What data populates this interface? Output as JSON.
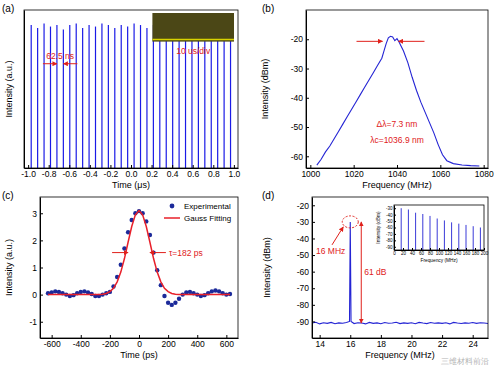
{
  "chart_data": [
    {
      "type": "stem",
      "title": "(a)",
      "x_label": "Time (μs)",
      "y_label": "Intensity (a.u.)",
      "x": [
        -0.97,
        -0.9075,
        -0.845,
        -0.7825,
        -0.72,
        -0.6575,
        -0.595,
        -0.5325,
        -0.47,
        -0.4075,
        -0.345,
        -0.2825,
        -0.22,
        -0.1575,
        -0.095,
        -0.0325,
        0.03,
        0.0925,
        0.155,
        0.2175,
        0.28,
        0.3425,
        0.405,
        0.4675,
        0.53,
        0.5925,
        0.655,
        0.7175,
        0.78,
        0.8425,
        0.905,
        0.9675
      ],
      "series": [
        {
          "color": "#1a1ae6",
          "values": [
            0.9,
            0.88,
            0.91,
            0.89,
            0.9,
            0.87,
            0.9,
            0.91,
            0.88,
            0.9,
            0.89,
            0.91,
            0.9,
            0.88,
            0.9,
            0.89,
            0.91,
            0.9,
            0.88,
            0.9,
            0.91,
            0.89,
            0.9,
            0.88,
            0.9,
            0.91,
            0.89,
            0.9,
            0.88,
            0.9,
            0.91,
            0.89
          ]
        }
      ],
      "xlim": [
        -1.04,
        1.04
      ],
      "xticks": [
        {
          "value": -1,
          "label": "-1.0"
        },
        {
          "value": -0.8,
          "label": "-0.8"
        },
        {
          "value": -0.6,
          "label": "-0.6"
        },
        {
          "value": -0.4,
          "label": "-0.4"
        },
        {
          "value": -0.2,
          "label": "-0.2"
        },
        {
          "value": 0,
          "label": "0.0"
        },
        {
          "value": 0.2,
          "label": "0.2"
        },
        {
          "value": 0.4,
          "label": "0.4"
        },
        {
          "value": 0.6,
          "label": "0.6"
        },
        {
          "value": 0.8,
          "label": "0.8"
        },
        {
          "value": 1,
          "label": "1.0"
        }
      ],
      "ylim": [
        -0.05,
        1
      ],
      "tick_labels": "x",
      "annotations": [
        "62.5 ns",
        "10 us/div"
      ]
    },
    {
      "type": "line",
      "title": "(b)",
      "x_label": "Frequency (MHz)",
      "y_label": "Intensity (dBm)",
      "x": [
        1003,
        1005,
        1007,
        1009,
        1011,
        1013,
        1015,
        1017,
        1019,
        1021,
        1023,
        1025,
        1027,
        1029,
        1031,
        1033,
        1034,
        1035,
        1036,
        1037,
        1038,
        1039,
        1040,
        1041,
        1043,
        1045,
        1047,
        1049,
        1051,
        1053,
        1055,
        1057,
        1059,
        1061,
        1063,
        1066,
        1070,
        1074,
        1078
      ],
      "series": [
        {
          "color": "#2424d4",
          "values": [
            -63,
            -61,
            -58.5,
            -56.5,
            -54,
            -51.5,
            -49,
            -46.5,
            -44,
            -41.5,
            -39,
            -36.5,
            -34,
            -31.5,
            -29,
            -26.5,
            -24,
            -21.5,
            -19.5,
            -19,
            -19.2,
            -20.5,
            -19.8,
            -21,
            -24,
            -28,
            -33,
            -37.5,
            -41.5,
            -45,
            -48.5,
            -52,
            -56,
            -59.5,
            -61.5,
            -62.5,
            -63,
            -63.2,
            -63.3
          ]
        }
      ],
      "xlim": [
        998,
        1082
      ],
      "xticks": [
        1000,
        1020,
        1040,
        1060,
        1080
      ],
      "ylim": [
        -64,
        -10
      ],
      "yticks": [
        -60,
        -50,
        -40,
        -30,
        -20
      ],
      "annotations": [
        "Δλ=7.3 nm",
        "λc=1036.9 nm"
      ]
    },
    {
      "type": "line",
      "title": "(c)",
      "x_label": "Time (ps)",
      "y_label": "Intensity (a.u.)",
      "x": [
        -625,
        -600,
        -575,
        -550,
        -525,
        -500,
        -475,
        -450,
        -425,
        -400,
        -375,
        -350,
        -325,
        -300,
        -275,
        -250,
        -225,
        -200,
        -175,
        -150,
        -125,
        -100,
        -75,
        -50,
        -25,
        0,
        25,
        50,
        75,
        100,
        125,
        150,
        175,
        200,
        225,
        250,
        275,
        300,
        325,
        350,
        375,
        400,
        425,
        450,
        475,
        500,
        525,
        550,
        575,
        600,
        625
      ],
      "series": [
        {
          "name": "Experimental",
          "type": "scatter",
          "marker": "circle",
          "color": "#1c2a9a",
          "values": [
            0.05,
            0.08,
            0.12,
            0.1,
            0.05,
            0.0,
            -0.05,
            -0.02,
            0.05,
            0.1,
            0.12,
            0.08,
            0.02,
            -0.05,
            -0.05,
            0.0,
            0.05,
            0.1,
            0.3,
            0.65,
            1.1,
            1.7,
            2.3,
            2.75,
            3.0,
            3.08,
            3.0,
            2.7,
            2.2,
            1.55,
            0.9,
            0.35,
            -0.05,
            -0.3,
            -0.38,
            -0.3,
            -0.15,
            0.0,
            0.08,
            0.1,
            0.05,
            0.0,
            -0.05,
            -0.02,
            0.05,
            0.12,
            0.15,
            0.12,
            0.05,
            0.0,
            0.02
          ]
        },
        {
          "name": "Gauss Fitting",
          "type": "line",
          "color": "#e8202a",
          "values": [
            0,
            0,
            0,
            0,
            0,
            0,
            0,
            0,
            0,
            0,
            0,
            0,
            0,
            0,
            0,
            0.01,
            0.04,
            0.11,
            0.23,
            0.47,
            0.83,
            1.33,
            1.93,
            2.51,
            2.94,
            3.1,
            2.94,
            2.51,
            1.93,
            1.33,
            0.83,
            0.47,
            0.23,
            0.11,
            0.04,
            0.01,
            0,
            0,
            0,
            0,
            0,
            0,
            0,
            0,
            0,
            0,
            0,
            0,
            0,
            0,
            0
          ]
        }
      ],
      "xlim": [
        -680,
        680
      ],
      "xticks": [
        -600,
        -400,
        -200,
        0,
        200,
        400,
        600
      ],
      "ylim": [
        -1.6,
        3.6
      ],
      "yticks": [
        -1,
        0,
        1,
        2,
        3
      ],
      "legend": "upper right",
      "annotations": [
        "τ=182 ps"
      ]
    },
    {
      "type": "line",
      "title": "(d)",
      "x_label": "Frequency (MHz)",
      "y_label": "Intensity (dBm)",
      "x": [
        13.5,
        13.75,
        14,
        14.25,
        14.5,
        14.75,
        15,
        15.25,
        15.5,
        15.75,
        15.95,
        16,
        16.05,
        16.25,
        16.5,
        16.75,
        17,
        17.25,
        17.5,
        17.75,
        18,
        18.25,
        18.5,
        18.75,
        19,
        19.25,
        19.5,
        19.75,
        20,
        20.25,
        20.5,
        20.75,
        21,
        21.25,
        21.5,
        21.75,
        22,
        22.25,
        22.5,
        22.75,
        23,
        23.25,
        23.5,
        23.75,
        24,
        24.25,
        24.5,
        24.75,
        25
      ],
      "series": [
        {
          "color": "#2424d4",
          "values": [
            -91,
            -90.5,
            -91.5,
            -90.8,
            -91.2,
            -90.6,
            -91.4,
            -90.9,
            -91.1,
            -90.7,
            -90,
            -30,
            -90,
            -91.3,
            -90.8,
            -91.0,
            -91.5,
            -90.6,
            -91.2,
            -90.9,
            -91.4,
            -90.7,
            -91.1,
            -91.0,
            -90.5,
            -91.3,
            -90.9,
            -91.2,
            -90.8,
            -91.4,
            -90.6,
            -91.0,
            -91.3,
            -90.7,
            -91.1,
            -90.9,
            -91.2,
            -90.8,
            -91.5,
            -90.6,
            -91.0,
            -91.3,
            -90.9,
            -91.1,
            -90.7,
            -91.2,
            -90.8,
            -91.0,
            -91.3
          ]
        }
      ],
      "xlim": [
        13.5,
        25
      ],
      "xticks": [
        14,
        16,
        18,
        20,
        22,
        24
      ],
      "ylim": [
        -100,
        -15
      ],
      "yticks": [
        -90,
        -80,
        -70,
        -60,
        -50,
        -40,
        -30,
        -20
      ],
      "annotations": [
        "16 MHz",
        "61 dB",
        "三维材料前沿"
      ]
    },
    {
      "type": "stem",
      "x_label": "Frequency (MHz)",
      "y_label": "Intensity (dBm)",
      "x": [
        16,
        32,
        48,
        64,
        80,
        96,
        112,
        128,
        144,
        160,
        176,
        192
      ],
      "series": [
        {
          "color": "#2424d4",
          "values": [
            -30,
            -32,
            -37,
            -39,
            -42,
            -46,
            -49,
            -52,
            -54,
            -56,
            -58,
            -60
          ]
        }
      ],
      "xlim": [
        0,
        200
      ],
      "xticks": [
        0,
        20,
        40,
        60,
        80,
        100,
        120,
        140,
        160,
        180,
        200
      ],
      "ylim": [
        -95,
        -25
      ],
      "yticks": [
        -90,
        -80,
        -70,
        -60,
        -50,
        -40,
        -30
      ]
    }
  ]
}
